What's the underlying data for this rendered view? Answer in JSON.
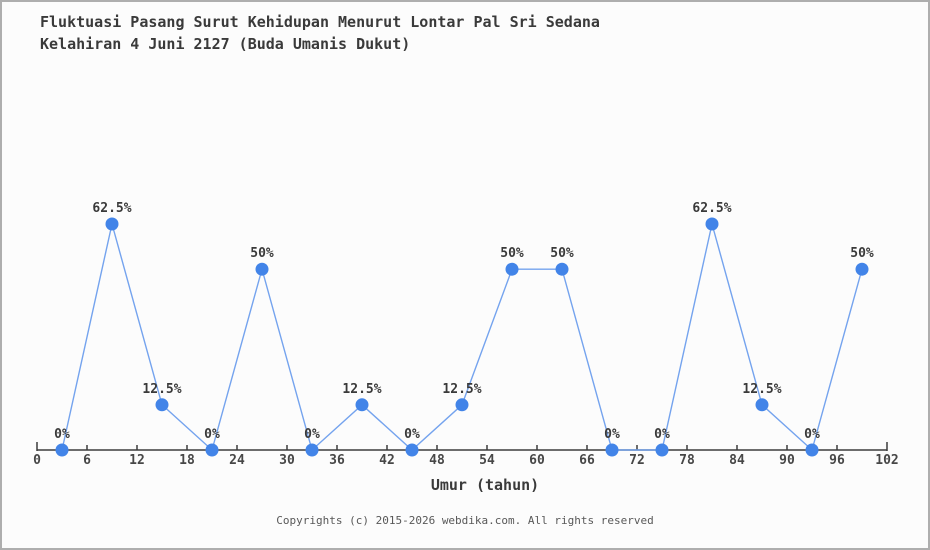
{
  "page": {
    "title_line1": "Fluktuasi Pasang Surut Kehidupan Menurut Lontar Pal Sri Sedana",
    "title_line2": "Kelahiran 4 Juni 2127 (Buda Umanis Dukut)",
    "footer": "Copyrights (c) 2015-2026 webdika.com. All rights reserved"
  },
  "chart_data": {
    "type": "line",
    "title": "Fluktuasi Pasang Surut Kehidupan Menurut Lontar Pal Sri Sedana Kelahiran 4 Juni 2127 (Buda Umanis Dukut)",
    "xlabel": "Umur (tahun)",
    "ylabel": "",
    "x": [
      3,
      9,
      15,
      21,
      27,
      33,
      39,
      45,
      51,
      57,
      63,
      69,
      75,
      81,
      87,
      93,
      99
    ],
    "values": [
      0,
      62.5,
      12.5,
      0,
      50,
      0,
      12.5,
      0,
      12.5,
      50,
      50,
      0,
      0,
      62.5,
      12.5,
      0,
      50
    ],
    "point_labels": [
      "0%",
      "62.5%",
      "12.5%",
      "0%",
      "50%",
      "0%",
      "12.5%",
      "0%",
      "12.5%",
      "50%",
      "50%",
      "0%",
      "0%",
      "62.5%",
      "12.5%",
      "0%",
      "50%"
    ],
    "x_ticks": [
      0,
      6,
      12,
      18,
      24,
      30,
      36,
      42,
      48,
      54,
      60,
      66,
      72,
      78,
      84,
      90,
      96,
      102
    ],
    "xlim": [
      0,
      102
    ],
    "ylim": [
      0,
      70
    ],
    "grid": false,
    "legend": null,
    "colors": {
      "line": "#74a3ee",
      "marker": "#4284e8",
      "axis": "#3c3c3c",
      "point_label": "#3a3a3a",
      "tick_label": "#474747"
    }
  }
}
